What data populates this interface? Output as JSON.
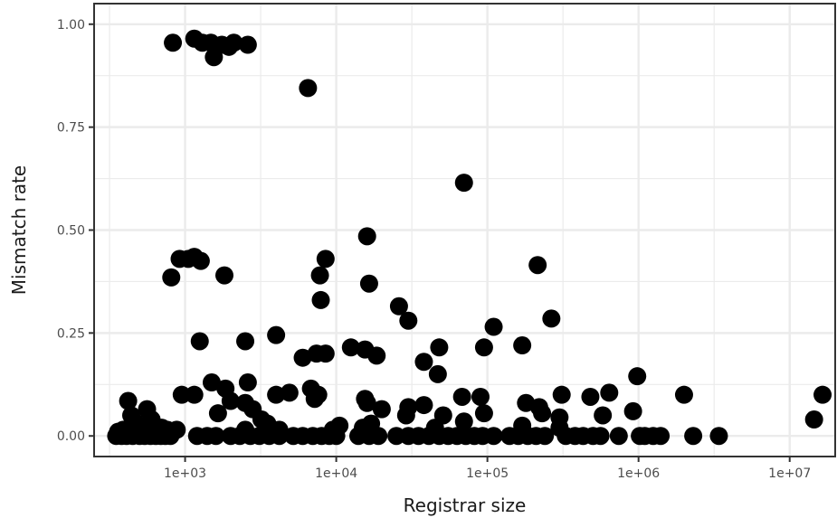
{
  "chart_data": {
    "type": "scatter",
    "title": "",
    "xlabel": "Registrar size",
    "ylabel": "Mismatch rate",
    "x_scale": "log10",
    "xlim": [
      250,
      20000000
    ],
    "ylim": [
      -0.05,
      1.05
    ],
    "x_ticks": [
      {
        "value": 1000,
        "label": "1e+03"
      },
      {
        "value": 10000,
        "label": "1e+04"
      },
      {
        "value": 100000,
        "label": "1e+05"
      },
      {
        "value": 1000000,
        "label": "1e+06"
      },
      {
        "value": 10000000,
        "label": "1e+07"
      }
    ],
    "y_ticks": [
      {
        "value": 0.0,
        "label": "0.00"
      },
      {
        "value": 0.25,
        "label": "0.25"
      },
      {
        "value": 0.5,
        "label": "0.50"
      },
      {
        "value": 0.75,
        "label": "0.75"
      },
      {
        "value": 1.0,
        "label": "1.00"
      }
    ],
    "grid": true,
    "legend": "none",
    "point_color": "#000000",
    "points": [
      {
        "x": 830,
        "y": 0.955
      },
      {
        "x": 1150,
        "y": 0.965
      },
      {
        "x": 1300,
        "y": 0.955
      },
      {
        "x": 1480,
        "y": 0.955
      },
      {
        "x": 1550,
        "y": 0.92
      },
      {
        "x": 1750,
        "y": 0.95
      },
      {
        "x": 1950,
        "y": 0.945
      },
      {
        "x": 2100,
        "y": 0.955
      },
      {
        "x": 2600,
        "y": 0.95
      },
      {
        "x": 6500,
        "y": 0.845
      },
      {
        "x": 70000,
        "y": 0.615
      },
      {
        "x": 810,
        "y": 0.385
      },
      {
        "x": 920,
        "y": 0.43
      },
      {
        "x": 1050,
        "y": 0.43
      },
      {
        "x": 1150,
        "y": 0.435
      },
      {
        "x": 1270,
        "y": 0.425
      },
      {
        "x": 1820,
        "y": 0.39
      },
      {
        "x": 8500,
        "y": 0.43
      },
      {
        "x": 16000,
        "y": 0.485
      },
      {
        "x": 7800,
        "y": 0.39
      },
      {
        "x": 7900,
        "y": 0.33
      },
      {
        "x": 16500,
        "y": 0.37
      },
      {
        "x": 215000,
        "y": 0.415
      },
      {
        "x": 26000,
        "y": 0.315
      },
      {
        "x": 30000,
        "y": 0.28
      },
      {
        "x": 110000,
        "y": 0.265
      },
      {
        "x": 265000,
        "y": 0.285
      },
      {
        "x": 1250,
        "y": 0.23
      },
      {
        "x": 2500,
        "y": 0.23
      },
      {
        "x": 4000,
        "y": 0.245
      },
      {
        "x": 6000,
        "y": 0.19
      },
      {
        "x": 7400,
        "y": 0.2
      },
      {
        "x": 8500,
        "y": 0.2
      },
      {
        "x": 12500,
        "y": 0.215
      },
      {
        "x": 15500,
        "y": 0.21
      },
      {
        "x": 18500,
        "y": 0.195
      },
      {
        "x": 48000,
        "y": 0.215
      },
      {
        "x": 95000,
        "y": 0.215
      },
      {
        "x": 170000,
        "y": 0.22
      },
      {
        "x": 38000,
        "y": 0.18
      },
      {
        "x": 47000,
        "y": 0.15
      },
      {
        "x": 1500,
        "y": 0.13
      },
      {
        "x": 2600,
        "y": 0.13
      },
      {
        "x": 1850,
        "y": 0.115
      },
      {
        "x": 6800,
        "y": 0.115
      },
      {
        "x": 950,
        "y": 0.1
      },
      {
        "x": 1150,
        "y": 0.1
      },
      {
        "x": 4000,
        "y": 0.1
      },
      {
        "x": 4900,
        "y": 0.105
      },
      {
        "x": 7200,
        "y": 0.09
      },
      {
        "x": 7600,
        "y": 0.1
      },
      {
        "x": 15500,
        "y": 0.09
      },
      {
        "x": 16000,
        "y": 0.08
      },
      {
        "x": 2000,
        "y": 0.085
      },
      {
        "x": 2500,
        "y": 0.08
      },
      {
        "x": 2800,
        "y": 0.065
      },
      {
        "x": 3200,
        "y": 0.04
      },
      {
        "x": 20000,
        "y": 0.065
      },
      {
        "x": 30000,
        "y": 0.07
      },
      {
        "x": 38000,
        "y": 0.075
      },
      {
        "x": 29000,
        "y": 0.05
      },
      {
        "x": 51000,
        "y": 0.05
      },
      {
        "x": 68000,
        "y": 0.095
      },
      {
        "x": 90000,
        "y": 0.095
      },
      {
        "x": 95000,
        "y": 0.055
      },
      {
        "x": 180000,
        "y": 0.08
      },
      {
        "x": 220000,
        "y": 0.07
      },
      {
        "x": 230000,
        "y": 0.055
      },
      {
        "x": 310000,
        "y": 0.1
      },
      {
        "x": 300000,
        "y": 0.045
      },
      {
        "x": 480000,
        "y": 0.095
      },
      {
        "x": 640000,
        "y": 0.105
      },
      {
        "x": 580000,
        "y": 0.05
      },
      {
        "x": 980000,
        "y": 0.145
      },
      {
        "x": 920000,
        "y": 0.06
      },
      {
        "x": 2000000,
        "y": 0.1
      },
      {
        "x": 14500000,
        "y": 0.04
      },
      {
        "x": 16500000,
        "y": 0.1
      },
      {
        "x": 1650,
        "y": 0.055
      },
      {
        "x": 420,
        "y": 0.085
      },
      {
        "x": 440,
        "y": 0.05
      },
      {
        "x": 560,
        "y": 0.065
      },
      {
        "x": 600,
        "y": 0.04
      },
      {
        "x": 480,
        "y": 0.03
      },
      {
        "x": 700,
        "y": 0.02
      },
      {
        "x": 760,
        "y": 0.015
      },
      {
        "x": 360,
        "y": 0.01
      },
      {
        "x": 390,
        "y": 0.015
      },
      {
        "x": 520,
        "y": 0.01
      },
      {
        "x": 880,
        "y": 0.015
      },
      {
        "x": 3500,
        "y": 0.03
      },
      {
        "x": 4200,
        "y": 0.015
      },
      {
        "x": 9500,
        "y": 0.015
      },
      {
        "x": 10500,
        "y": 0.025
      },
      {
        "x": 17000,
        "y": 0.03
      },
      {
        "x": 45000,
        "y": 0.02
      },
      {
        "x": 70000,
        "y": 0.035
      },
      {
        "x": 170000,
        "y": 0.025
      },
      {
        "x": 300000,
        "y": 0.02
      },
      {
        "x": 2500,
        "y": 0.015
      },
      {
        "x": 15000,
        "y": 0.02
      },
      {
        "x": 350,
        "y": 0.0
      },
      {
        "x": 380,
        "y": 0.0
      },
      {
        "x": 410,
        "y": 0.0
      },
      {
        "x": 450,
        "y": 0.0
      },
      {
        "x": 500,
        "y": 0.0
      },
      {
        "x": 540,
        "y": 0.0
      },
      {
        "x": 590,
        "y": 0.0
      },
      {
        "x": 640,
        "y": 0.0
      },
      {
        "x": 690,
        "y": 0.0
      },
      {
        "x": 740,
        "y": 0.0
      },
      {
        "x": 800,
        "y": 0.0
      },
      {
        "x": 1200,
        "y": 0.0
      },
      {
        "x": 1400,
        "y": 0.0
      },
      {
        "x": 1600,
        "y": 0.0
      },
      {
        "x": 2000,
        "y": 0.0
      },
      {
        "x": 2300,
        "y": 0.0
      },
      {
        "x": 2700,
        "y": 0.0
      },
      {
        "x": 3100,
        "y": 0.0
      },
      {
        "x": 3600,
        "y": 0.0
      },
      {
        "x": 4200,
        "y": 0.0
      },
      {
        "x": 5200,
        "y": 0.0
      },
      {
        "x": 6000,
        "y": 0.0
      },
      {
        "x": 7000,
        "y": 0.0
      },
      {
        "x": 8000,
        "y": 0.0
      },
      {
        "x": 9000,
        "y": 0.0
      },
      {
        "x": 10000,
        "y": 0.0
      },
      {
        "x": 14000,
        "y": 0.0
      },
      {
        "x": 16500,
        "y": 0.0
      },
      {
        "x": 19000,
        "y": 0.0
      },
      {
        "x": 25000,
        "y": 0.0
      },
      {
        "x": 30000,
        "y": 0.0
      },
      {
        "x": 35000,
        "y": 0.0
      },
      {
        "x": 41000,
        "y": 0.0
      },
      {
        "x": 48000,
        "y": 0.0
      },
      {
        "x": 55000,
        "y": 0.0
      },
      {
        "x": 63000,
        "y": 0.0
      },
      {
        "x": 72000,
        "y": 0.0
      },
      {
        "x": 82000,
        "y": 0.0
      },
      {
        "x": 93000,
        "y": 0.0
      },
      {
        "x": 110000,
        "y": 0.0
      },
      {
        "x": 140000,
        "y": 0.0
      },
      {
        "x": 160000,
        "y": 0.0
      },
      {
        "x": 185000,
        "y": 0.0
      },
      {
        "x": 210000,
        "y": 0.0
      },
      {
        "x": 240000,
        "y": 0.0
      },
      {
        "x": 330000,
        "y": 0.0
      },
      {
        "x": 380000,
        "y": 0.0
      },
      {
        "x": 430000,
        "y": 0.0
      },
      {
        "x": 500000,
        "y": 0.0
      },
      {
        "x": 560000,
        "y": 0.0
      },
      {
        "x": 740000,
        "y": 0.0
      },
      {
        "x": 1020000,
        "y": 0.0
      },
      {
        "x": 1100000,
        "y": 0.0
      },
      {
        "x": 1250000,
        "y": 0.0
      },
      {
        "x": 1400000,
        "y": 0.0
      },
      {
        "x": 2300000,
        "y": 0.0
      },
      {
        "x": 3400000,
        "y": 0.0
      }
    ]
  }
}
